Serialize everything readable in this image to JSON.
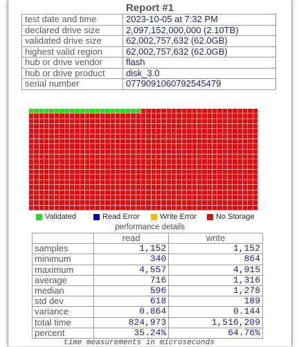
{
  "report": {
    "title": "Report #1",
    "rows": [
      {
        "label": "test date and time",
        "value": "2023-10-05  at  7:32 PM"
      },
      {
        "label": "declared drive size",
        "value": "2,097,152,000,000 (2.10TB)"
      },
      {
        "label": "validated drive size",
        "value": "62,002,757,632 (62.0GB)"
      },
      {
        "label": "highest valid region",
        "value": "62,002,757,632 (62.0GB)"
      },
      {
        "label": "hub or drive vendor",
        "value": "flash"
      },
      {
        "label": "hub or drive product",
        "value": "disk_3.0"
      },
      {
        "label": "serial number",
        "value": "0779091060792545479"
      }
    ]
  },
  "region_map": {
    "columns": 45,
    "rows": 20,
    "validated_cells": 22,
    "colors": {
      "validated": "#22dd22",
      "read_error": "#0000cc",
      "write_error": "#f0c000",
      "no_storage": "#dd1111"
    }
  },
  "legend": {
    "validated": "Validated",
    "read_error": "Read Error",
    "write_error": "Write Error",
    "no_storage": "No Storage"
  },
  "performance": {
    "caption": "performance details",
    "headers": {
      "read": "read",
      "write": "write"
    },
    "rows": [
      {
        "label": "samples",
        "read": "1,152",
        "write": "1,152"
      },
      {
        "label": "minimum",
        "read": "340",
        "write": "864"
      },
      {
        "label": "maximum",
        "read": "4,557",
        "write": "4,915"
      },
      {
        "label": "average",
        "read": "716",
        "write": "1,316"
      },
      {
        "label": "median",
        "read": "596",
        "write": "1,278"
      },
      {
        "label": "std dev",
        "read": "618",
        "write": "189"
      },
      {
        "label": "variance",
        "read": "0.864",
        "write": "0.144"
      },
      {
        "label": "total time",
        "read": "824,973",
        "write": "1,516,209"
      },
      {
        "label": "percent",
        "read": "35.24%",
        "write": "64.76%"
      }
    ],
    "footnote": "time measurements in microseconds"
  }
}
